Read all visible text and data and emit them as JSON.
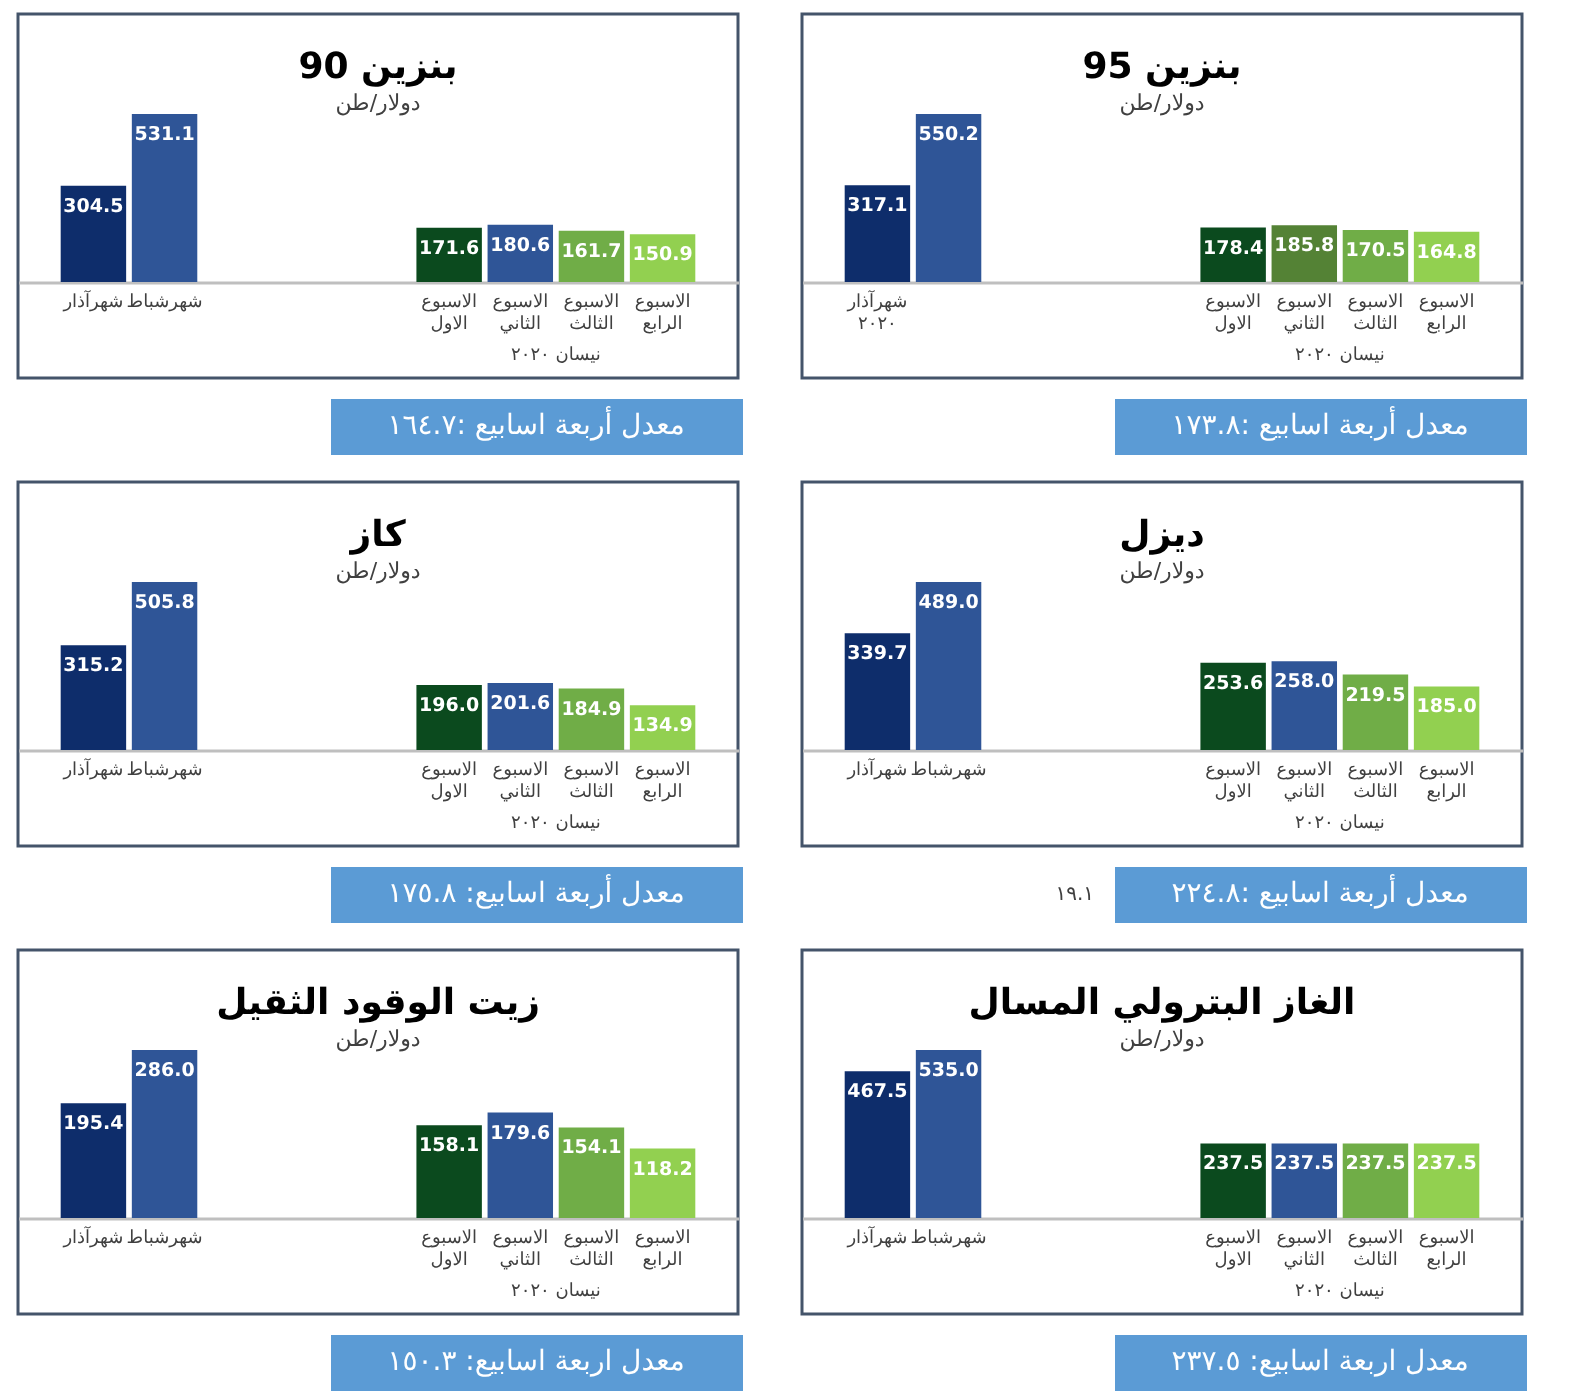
{
  "chart_data": [
    {
      "type": "bar",
      "title": "بنزين 90",
      "subtitle": "دولار/طن",
      "categories": [
        "شهرآذار",
        "شهرشباط",
        null,
        null,
        null,
        "الاسبوع الاول",
        "الاسبوع الثاني",
        "الاسبوع الثالث",
        "الاسبوع الرابع"
      ],
      "values": [
        304.5,
        531.1,
        null,
        null,
        null,
        171.6,
        180.6,
        161.7,
        150.9
      ],
      "colors": [
        "#0e2d6b",
        "#2f5597",
        null,
        null,
        null,
        "#0b4a1e",
        "#2f5597",
        "#70ad47",
        "#92d050"
      ],
      "data_labels": true,
      "annotations": [
        "نيسان ٢٠٢٠",
        "معدل أربعة اسابيع :١٦٤.٧"
      ]
    },
    {
      "type": "bar",
      "title": "بنزين 95",
      "subtitle": "دولار/طن",
      "categories": [
        "شهرآذار ٢٠٢٠",
        null,
        null,
        null,
        null,
        "الاسبوع الاول",
        "الاسبوع الثاني",
        "الاسبوع الثالث",
        "الاسبوع الرابع"
      ],
      "values": [
        317.1,
        550.2,
        null,
        null,
        null,
        178.4,
        185.8,
        170.5,
        164.8
      ],
      "colors": [
        "#0e2d6b",
        "#2f5597",
        null,
        null,
        null,
        "#0b4a1e",
        "#548235",
        "#70ad47",
        "#92d050"
      ],
      "data_labels": true,
      "annotations": [
        "نيسان ٢٠٢٠",
        "معدل أربعة اسابيع :١٧٣.٨"
      ]
    },
    {
      "type": "bar",
      "title": "كاز",
      "subtitle": "دولار/طن",
      "categories": [
        "شهرآذار",
        "شهرشباط",
        null,
        null,
        null,
        "الاسبوع الاول",
        "الاسبوع الثاني",
        "الاسبوع الثالث",
        "الاسبوع الرابع"
      ],
      "values": [
        315.2,
        505.8,
        null,
        null,
        null,
        196.0,
        201.6,
        184.9,
        134.9
      ],
      "value_labels": [
        "315.2",
        "505.8",
        null,
        null,
        null,
        "196.0",
        "201.6",
        "184.9",
        "134.9"
      ],
      "colors": [
        "#0e2d6b",
        "#2f5597",
        null,
        null,
        null,
        "#0b4a1e",
        "#2f5597",
        "#70ad47",
        "#92d050"
      ],
      "annotations": [
        "نيسان ٢٠٢٠",
        "معدل أربعة اسابيع: ١٧٥.٨"
      ]
    },
    {
      "type": "bar",
      "title": "ديزل",
      "subtitle": "دولار/طن",
      "categories": [
        "شهرآذار",
        "شهرشباط",
        null,
        null,
        null,
        "الاسبوع الاول",
        "الاسبوع الثاني",
        "الاسبوع الثالث",
        "الاسبوع الرابع"
      ],
      "values": [
        339.7,
        489.0,
        null,
        null,
        null,
        253.6,
        258.0,
        219.5,
        185.0
      ],
      "value_labels": [
        "339.7",
        "489.0",
        null,
        null,
        null,
        "253.6",
        "258.0",
        "219.5",
        "185.0"
      ],
      "colors": [
        "#0e2d6b",
        "#2f5597",
        null,
        null,
        null,
        "#0b4a1e",
        "#2f5597",
        "#70ad47",
        "#92d050"
      ],
      "annotations": [
        "نيسان ٢٠٢٠",
        "١٩.١",
        "معدل أربعة اسابيع :٢٢٤.٨"
      ]
    },
    {
      "type": "bar",
      "title": "زيت الوقود الثقيل",
      "subtitle": "دولار/طن",
      "categories": [
        "شهرآذار",
        "شهرشباط",
        null,
        null,
        null,
        "الاسبوع الاول",
        "الاسبوع الثاني",
        "الاسبوع الثالث",
        "الاسبوع الرابع"
      ],
      "values": [
        195.4,
        286.0,
        null,
        null,
        null,
        158.1,
        179.6,
        154.1,
        118.2
      ],
      "value_labels": [
        "195.4",
        "286.0",
        null,
        null,
        null,
        "158.1",
        "179.6",
        "154.1",
        "118.2"
      ],
      "colors": [
        "#0e2d6b",
        "#2f5597",
        null,
        null,
        null,
        "#0b4a1e",
        "#2f5597",
        "#70ad47",
        "#92d050"
      ],
      "annotations": [
        "نيسان ٢٠٢٠",
        "معدل اربعة اسابيع: ١٥٠.٣"
      ]
    },
    {
      "type": "bar",
      "title": "الغاز البترولي المسال",
      "subtitle": "دولار/طن",
      "categories": [
        "شهرآذار",
        "شهرشباط",
        null,
        null,
        null,
        "الاسبوع الاول",
        "الاسبوع الثاني",
        "الاسبوع الثالث",
        "الاسبوع الرابع"
      ],
      "values": [
        467.5,
        535.0,
        null,
        null,
        null,
        237.5,
        237.5,
        237.5,
        237.5
      ],
      "value_labels": [
        "467.5",
        "535.0",
        null,
        null,
        null,
        "237.5",
        "237.5",
        "237.5",
        "237.5"
      ],
      "colors": [
        "#0e2d6b",
        "#2f5597",
        null,
        null,
        null,
        "#0b4a1e",
        "#2f5597",
        "#70ad47",
        "#92d050"
      ],
      "annotations": [
        "نيسان ٢٠٢٠",
        "معدل اربعة اسابيع: ٢٣٧.٥"
      ]
    }
  ]
}
